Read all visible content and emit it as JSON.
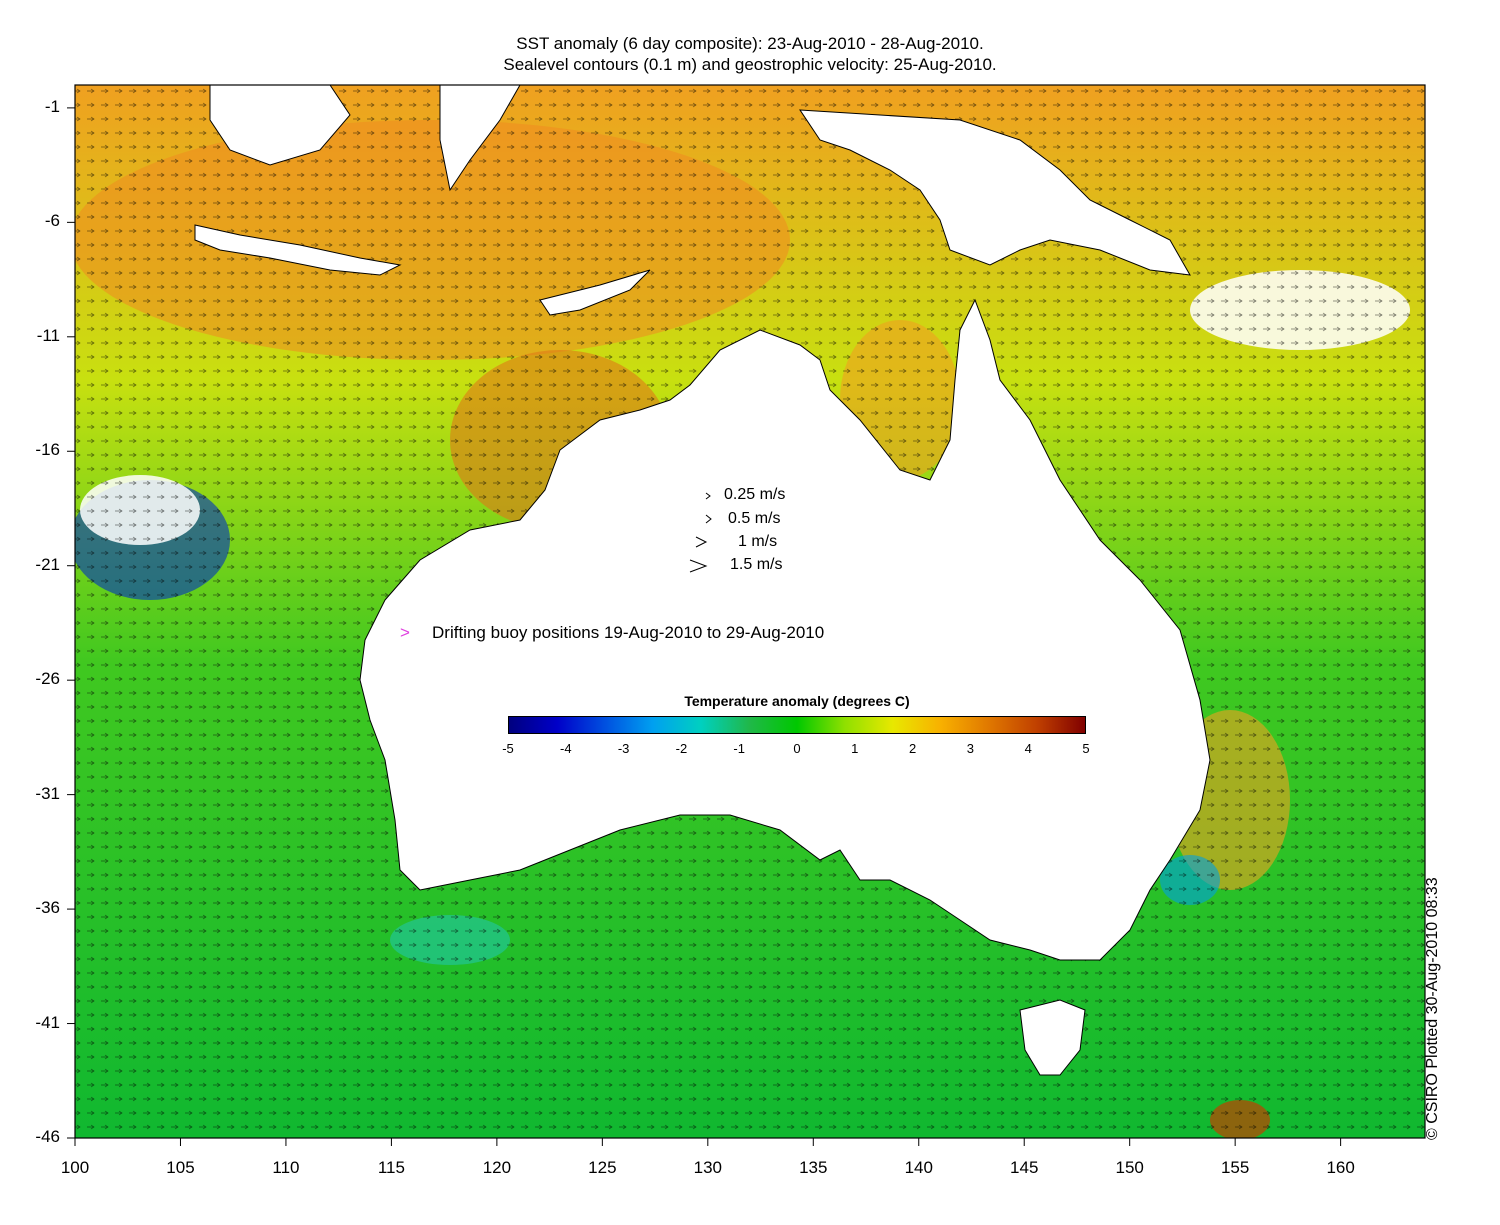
{
  "title": {
    "line1": "SST anomaly (6 day composite): 23-Aug-2010 - 28-Aug-2010.",
    "line2": "Sealevel contours (0.1 m) and geostrophic velocity: 25-Aug-2010."
  },
  "axes": {
    "x_ticks": [
      "100",
      "105",
      "110",
      "115",
      "120",
      "125",
      "130",
      "135",
      "140",
      "145",
      "150",
      "155",
      "160"
    ],
    "y_ticks": [
      "-1",
      "-6",
      "-11",
      "-16",
      "-21",
      "-26",
      "-31",
      "-36",
      "-41",
      "-46"
    ],
    "x_range": [
      100,
      164
    ],
    "y_range": [
      -46,
      0
    ]
  },
  "velocity_legend": [
    {
      "label": "0.25 m/s",
      "speed": 0.25
    },
    {
      "label": "0.5 m/s",
      "speed": 0.5
    },
    {
      "label": "1 m/s",
      "speed": 1
    },
    {
      "label": "1.5 m/s",
      "speed": 1.5
    }
  ],
  "buoy_legend": {
    "label": "Drifting buoy positions 19-Aug-2010 to 29-Aug-2010",
    "marker": ">",
    "color": "#e040e0"
  },
  "colorbar": {
    "title": "Temperature anomaly (degrees C)",
    "ticks": [
      "-5",
      "-4",
      "-3",
      "-2",
      "-1",
      "0",
      "1",
      "2",
      "3",
      "4",
      "5"
    ],
    "range": [
      -5,
      5
    ],
    "colors": [
      "#00007f",
      "#0000c8",
      "#0050e0",
      "#00a0f0",
      "#00d0c0",
      "#20b84a",
      "#00c800",
      "#90e000",
      "#e8e800",
      "#f8b000",
      "#e07800",
      "#c04000",
      "#800000"
    ]
  },
  "credit": "© CSIRO Plotted 30-Aug-2010 08:33"
}
